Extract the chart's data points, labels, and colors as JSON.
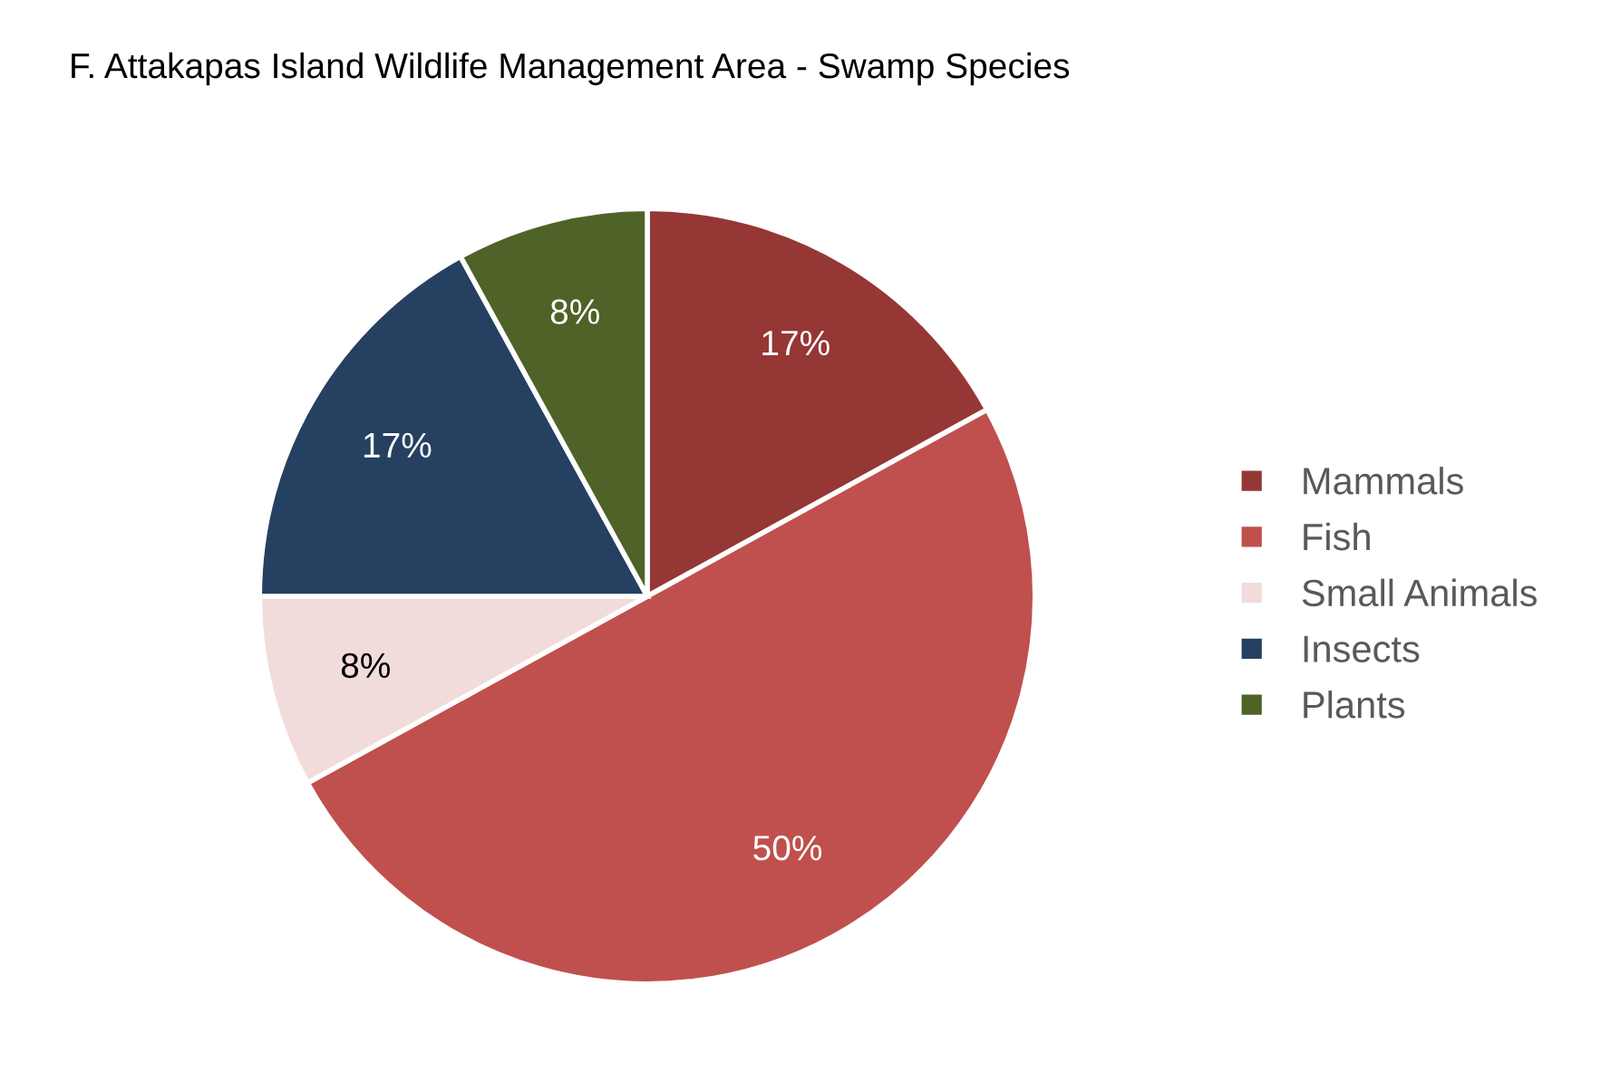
{
  "chart_data": {
    "type": "pie",
    "title": "F. Attakapas Island Wildlife Management Area - Swamp Species",
    "categories": [
      "Mammals",
      "Fish",
      "Small Animals",
      "Insects",
      "Plants"
    ],
    "values": [
      17,
      50,
      8,
      17,
      8
    ],
    "colors": [
      "#953735",
      "#c0504d",
      "#f2dcdb",
      "#254061",
      "#4f6228"
    ],
    "value_labels": [
      "17%",
      "50%",
      "8%",
      "17%",
      "8%"
    ],
    "legend": "right"
  }
}
